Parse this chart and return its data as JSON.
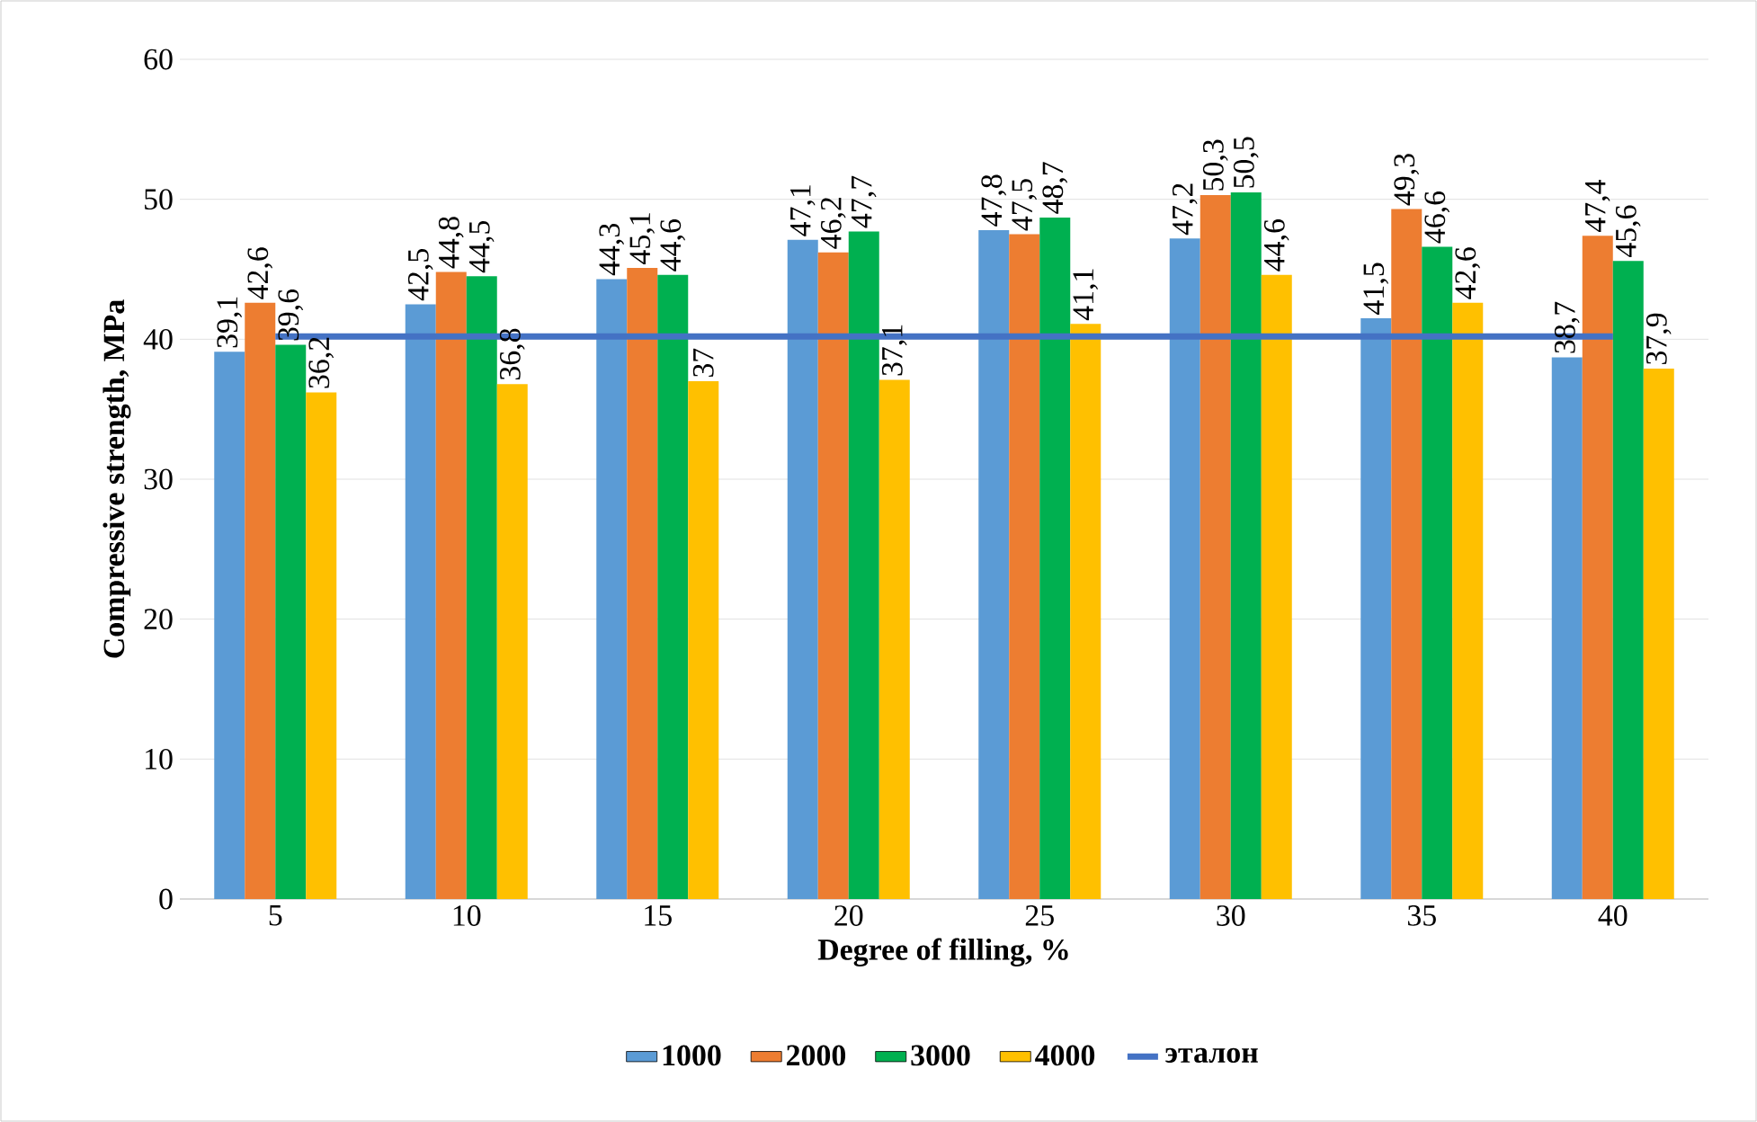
{
  "chart_data": {
    "type": "bar",
    "xlabel": "Degree of filling, %",
    "ylabel": "Compressive strength, MPa",
    "categories": [
      "5",
      "10",
      "15",
      "20",
      "25",
      "30",
      "35",
      "40"
    ],
    "series": [
      {
        "name": "1000",
        "color": "#5b9bd5",
        "values": [
          39.1,
          42.5,
          44.3,
          47.1,
          47.8,
          47.2,
          41.5,
          38.7
        ],
        "value_labels": [
          "39,1",
          "42,5",
          "44,3",
          "47,1",
          "47,8",
          "47,2",
          "41,5",
          "38,7"
        ]
      },
      {
        "name": "2000",
        "color": "#ed7d31",
        "values": [
          42.6,
          44.8,
          45.1,
          46.2,
          47.5,
          50.3,
          49.3,
          47.4
        ],
        "value_labels": [
          "42,6",
          "44,8",
          "45,1",
          "46,2",
          "47,5",
          "50,3",
          "49,3",
          "47,4"
        ]
      },
      {
        "name": "3000",
        "color": "#00b050",
        "values": [
          39.6,
          44.5,
          44.6,
          47.7,
          48.7,
          50.5,
          46.6,
          45.6
        ],
        "value_labels": [
          "39,6",
          "44,5",
          "44,6",
          "47,7",
          "48,7",
          "50,5",
          "46,6",
          "45,6"
        ]
      },
      {
        "name": "4000",
        "color": "#ffc000",
        "values": [
          36.2,
          36.8,
          37,
          37.1,
          41.1,
          44.6,
          42.6,
          37.9
        ],
        "value_labels": [
          "36,2",
          "36,8",
          "37",
          "37,1",
          "41,1",
          "44,6",
          "42,6",
          "37,9"
        ]
      },
      {
        "name": "эталон",
        "type": "line",
        "color": "#4472c4",
        "values": [
          40.2,
          40.2,
          40.2,
          40.2,
          40.2,
          40.2,
          40.2,
          40.2
        ]
      }
    ],
    "ylim": [
      0,
      60
    ],
    "yticks": [
      0,
      10,
      20,
      30,
      40,
      50,
      60
    ],
    "grid": "y",
    "legend": "bottom"
  }
}
